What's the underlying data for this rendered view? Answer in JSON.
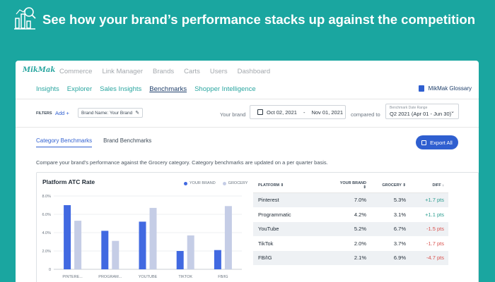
{
  "banner": {
    "title": "See how your brand’s performance stacks up against the competition",
    "icon": "analytics-chart-icon"
  },
  "app": {
    "logo": "MikMak",
    "primary_nav": [
      "Commerce",
      "Link Manager",
      "Brands",
      "Carts",
      "Users",
      "Dashboard"
    ],
    "secondary_nav": [
      {
        "label": "Insights",
        "active": false
      },
      {
        "label": "Explorer",
        "active": false
      },
      {
        "label": "Sales Insights",
        "active": false
      },
      {
        "label": "Benchmarks",
        "active": true
      },
      {
        "label": "Shopper Intelligence",
        "active": false
      }
    ],
    "glossary": "MikMak Glossary"
  },
  "filters": {
    "label": "FILTERS",
    "add": "Add",
    "brand_chip": "Brand Name:  Your Brand",
    "your_brand_label": "Your brand",
    "date_start": "Oct 02, 2021",
    "date_sep": "-",
    "date_end": "Nov 01, 2021",
    "compared_to": "compared to",
    "bench_small": "Benchmark Date Range",
    "bench_value": "Q2 2021 (Apr 01 - Jun 30)"
  },
  "tabs": [
    "Category Benchmarks",
    "Brand Benchmarks"
  ],
  "export_label": "Export All",
  "description": "Compare your brand's performance against the Grocery category. Category benchmarks are updated on a per quarter basis.",
  "colors": {
    "your_brand": "#4169e1",
    "grocery": "#c5cde6",
    "positive": "#2a9d8f",
    "negative": "#d9534f"
  },
  "chart_data": {
    "type": "bar",
    "title": "Platform ATC Rate",
    "categories": [
      "PINTERE...",
      "PROGRAM...",
      "YOUTUBE",
      "TIKTOK",
      "FB/IG"
    ],
    "series": [
      {
        "name": "YOUR BRAND",
        "values": [
          7.0,
          4.2,
          5.2,
          2.0,
          2.1
        ]
      },
      {
        "name": "GROCERY",
        "values": [
          5.3,
          3.1,
          6.7,
          3.7,
          6.9
        ]
      }
    ],
    "ylim": [
      0,
      8
    ],
    "yticks": [
      "0",
      "2.0%",
      "4.0%",
      "6.0%",
      "8.0%"
    ],
    "grid": true,
    "legend": "top-right"
  },
  "table": {
    "headers": [
      "PLATFORM",
      "YOUR BRAND",
      "GROCERY",
      "DIFF"
    ],
    "rows": [
      [
        "Pinterest",
        "7.0%",
        "5.3%",
        "+1.7 pts"
      ],
      [
        "Programmatic",
        "4.2%",
        "3.1%",
        "+1.1 pts"
      ],
      [
        "YouTube",
        "5.2%",
        "6.7%",
        "-1.5 pts"
      ],
      [
        "TikTok",
        "2.0%",
        "3.7%",
        "-1.7 pts"
      ],
      [
        "FB/IG",
        "2.1%",
        "6.9%",
        "-4.7 pts"
      ]
    ]
  }
}
